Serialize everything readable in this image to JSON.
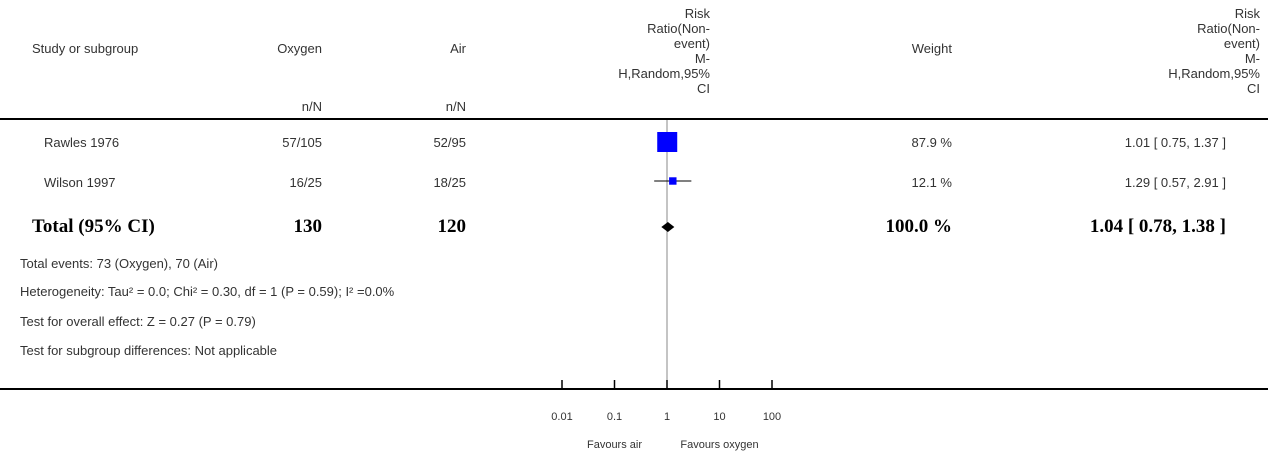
{
  "header": {
    "study": "Study or subgroup",
    "oxygen": "Oxygen",
    "air": "Air",
    "oxygen_unit": "n/N",
    "air_unit": "n/N",
    "effect": [
      "Risk",
      "Ratio(Non-",
      "event)",
      "M-",
      "H,Random,95%",
      "CI"
    ],
    "weight": "Weight",
    "effect2": [
      "Risk",
      "Ratio(Non-",
      "event)",
      "M-",
      "H,Random,95%",
      "CI"
    ]
  },
  "rows": [
    {
      "study": "Rawles 1976",
      "oxygen": "57/105",
      "air": "52/95",
      "weight": "87.9 %",
      "ci_text": "1.01 [ 0.75, 1.37 ]"
    },
    {
      "study": "Wilson 1997",
      "oxygen": "16/25",
      "air": "18/25",
      "weight": "12.1 %",
      "ci_text": "1.29 [ 0.57, 2.91 ]"
    }
  ],
  "total": {
    "label": "Total (95% CI)",
    "oxygen": "130",
    "air": "120",
    "weight": "100.0 %",
    "ci_text": "1.04 [ 0.78, 1.38 ]"
  },
  "footnotes": {
    "events": "Total events: 73 (Oxygen), 70 (Air)",
    "heterogeneity": "Heterogeneity: Tau² = 0.0; Chi² = 0.30, df = 1 (P = 0.59); I² =0.0%",
    "overall": "Test for overall effect: Z = 0.27 (P = 0.79)",
    "subgroup": "Test for subgroup differences: Not applicable"
  },
  "chart_data": {
    "type": "forest",
    "scale": "log",
    "xlim": [
      0.01,
      100
    ],
    "ticks": [
      0.01,
      0.1,
      1,
      10,
      100
    ],
    "tick_labels": [
      "0.01",
      "0.1",
      "1",
      "10",
      "100"
    ],
    "reference_line": 1,
    "favours_left": "Favours air",
    "favours_right": "Favours oxygen",
    "studies": [
      {
        "name": "Rawles 1976",
        "estimate": 1.01,
        "lower": 0.75,
        "upper": 1.37,
        "weight": 87.9
      },
      {
        "name": "Wilson 1997",
        "estimate": 1.29,
        "lower": 0.57,
        "upper": 2.91,
        "weight": 12.1
      }
    ],
    "pooled": {
      "estimate": 1.04,
      "lower": 0.78,
      "upper": 1.38
    },
    "colors": {
      "marker": "#0000ff",
      "diamond": "#000000",
      "axis": "#000000",
      "refline": "#888888"
    }
  }
}
